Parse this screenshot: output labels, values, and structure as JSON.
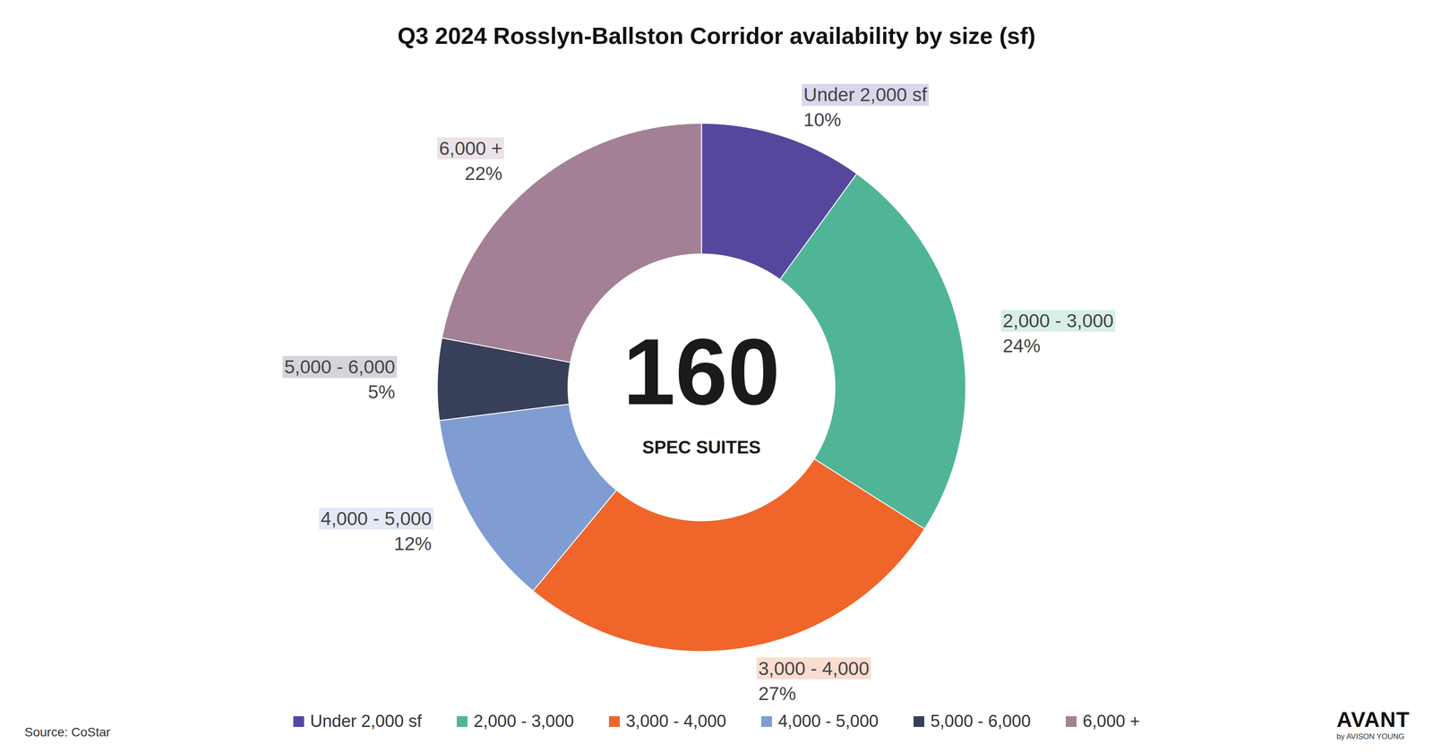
{
  "chart_data": {
    "type": "donut",
    "title": "Q3 2024 Rosslyn-Ballston Corridor availability by size (sf)",
    "categories": [
      "Under 2,000 sf",
      "2,000 - 3,000",
      "3,000 - 4,000",
      "4,000 - 5,000",
      "5,000 - 6,000",
      "6,000 +"
    ],
    "values": [
      10,
      24,
      27,
      12,
      5,
      22
    ],
    "value_labels": [
      "10%",
      "24%",
      "27%",
      "12%",
      "5%",
      "22%"
    ],
    "colors": [
      "#56479e",
      "#4fb596",
      "#ef652a",
      "#7f9dd3",
      "#374058",
      "#a48097"
    ],
    "data_labels": true,
    "legend": "bottom",
    "center_value": 160,
    "center_label": "SPEC SUITES",
    "source": "Source: CoStar",
    "logo": "AVANT",
    "logo_subtitle": "by AVISON YOUNG"
  }
}
